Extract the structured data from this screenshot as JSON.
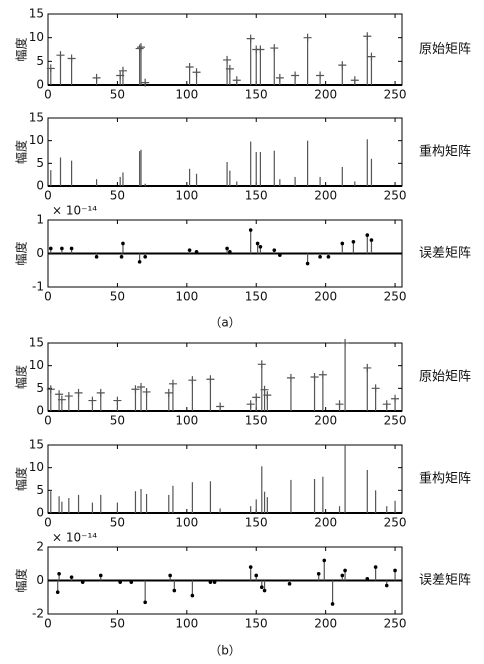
{
  "chart_data": [
    {
      "type": "stem",
      "ylabel": "幅度",
      "label": "原始矩阵",
      "marker": "plus",
      "xlim": [
        0,
        255
      ],
      "xticks": [
        0,
        50,
        100,
        150,
        200,
        250
      ],
      "ylim": [
        0,
        15
      ],
      "yticks": [
        0,
        5,
        10,
        15
      ],
      "x": [
        2,
        9,
        17,
        35,
        52,
        54,
        66,
        67,
        70,
        102,
        107,
        129,
        131,
        136,
        146,
        150,
        153,
        163,
        167,
        178,
        187,
        196,
        212,
        221,
        230,
        233
      ],
      "values": [
        3.5,
        6.3,
        5.6,
        1.5,
        2,
        3,
        7.7,
        8,
        0.5,
        3.8,
        2.7,
        5.3,
        3.4,
        1,
        9.8,
        7.5,
        7.5,
        7.8,
        1.5,
        2,
        10,
        2,
        4.2,
        1,
        10.3,
        6
      ]
    },
    {
      "type": "stem",
      "ylabel": "幅度",
      "label": "重构矩阵",
      "marker": "none",
      "xlim": [
        0,
        255
      ],
      "xticks": [
        0,
        50,
        100,
        150,
        200,
        250
      ],
      "ylim": [
        0,
        15
      ],
      "yticks": [
        0,
        5,
        10,
        15
      ],
      "x": [
        2,
        9,
        17,
        35,
        52,
        54,
        66,
        67,
        70,
        102,
        107,
        129,
        131,
        136,
        146,
        150,
        153,
        163,
        167,
        178,
        187,
        196,
        212,
        221,
        230,
        233
      ],
      "values": [
        3.5,
        6.3,
        5.6,
        1.5,
        2,
        3,
        7.7,
        8,
        0.5,
        3.8,
        2.7,
        5.3,
        3.4,
        1,
        9.8,
        7.5,
        7.5,
        7.8,
        1.5,
        2,
        10,
        2,
        4.2,
        1,
        10.3,
        6
      ]
    },
    {
      "type": "stem",
      "ylabel": "幅度",
      "label": "误差矩阵",
      "marker": "dot",
      "offset_text": "× 10⁻¹⁴",
      "xlim": [
        0,
        255
      ],
      "xticks": [
        0,
        50,
        100,
        150,
        200,
        250
      ],
      "ylim": [
        -1,
        1
      ],
      "yticks": [
        -1,
        0,
        1
      ],
      "x": [
        2,
        10,
        17,
        35,
        53,
        54,
        66,
        70,
        102,
        107,
        129,
        131,
        146,
        151,
        153,
        163,
        167,
        187,
        196,
        202,
        212,
        220,
        230,
        233
      ],
      "values": [
        0.15,
        0.15,
        0.15,
        -0.1,
        -0.1,
        0.3,
        -0.25,
        -0.1,
        0.1,
        0.05,
        0.15,
        0.05,
        0.7,
        0.3,
        0.2,
        0.1,
        -0.05,
        -0.3,
        -0.1,
        -0.1,
        0.3,
        0.35,
        0.55,
        0.4
      ]
    },
    {
      "type": "stem",
      "ylabel": "幅度",
      "label": "原始矩阵",
      "marker": "plus",
      "xlim": [
        0,
        255
      ],
      "xticks": [
        0,
        50,
        100,
        150,
        200,
        250
      ],
      "ylim": [
        0,
        15
      ],
      "yticks": [
        0,
        5,
        10,
        15
      ],
      "x": [
        2,
        8,
        10,
        15,
        22,
        32,
        38,
        50,
        63,
        67,
        71,
        87,
        90,
        104,
        117,
        124,
        146,
        150,
        154,
        156,
        158,
        175,
        192,
        198,
        210,
        214,
        230,
        236,
        244,
        250
      ],
      "values": [
        4.8,
        3.7,
        2.5,
        3.3,
        4,
        2.3,
        4,
        2.3,
        4.8,
        5.3,
        4.2,
        4,
        6,
        6.8,
        7,
        1,
        1.5,
        3,
        10.3,
        4.7,
        3.5,
        7.3,
        7.5,
        8,
        1.5,
        15,
        9.5,
        5,
        1.5,
        2.7
      ]
    },
    {
      "type": "stem",
      "ylabel": "幅度",
      "label": "重构矩阵",
      "marker": "none",
      "xlim": [
        0,
        255
      ],
      "xticks": [
        0,
        50,
        100,
        150,
        200,
        250
      ],
      "ylim": [
        0,
        15
      ],
      "yticks": [
        0,
        5,
        10,
        15
      ],
      "x": [
        2,
        8,
        10,
        15,
        22,
        32,
        38,
        50,
        63,
        67,
        71,
        87,
        90,
        104,
        117,
        124,
        146,
        150,
        154,
        156,
        158,
        175,
        192,
        198,
        210,
        214,
        230,
        236,
        244,
        250
      ],
      "values": [
        4.8,
        3.7,
        2.5,
        3.3,
        4,
        2.3,
        4,
        2.3,
        4.8,
        5.3,
        4.2,
        4,
        6,
        6.8,
        7,
        1,
        1.5,
        3,
        10.3,
        4.7,
        3.5,
        7.3,
        7.5,
        8,
        1.5,
        15,
        9.5,
        5,
        1.5,
        2.7
      ]
    },
    {
      "type": "stem",
      "ylabel": "幅度",
      "label": "误差矩阵",
      "marker": "dot",
      "offset_text": "× 10⁻¹⁴",
      "xlim": [
        0,
        255
      ],
      "xticks": [
        0,
        50,
        100,
        150,
        200,
        250
      ],
      "ylim": [
        -2,
        2
      ],
      "yticks": [
        -2,
        0,
        2
      ],
      "x": [
        7,
        8,
        17,
        25,
        38,
        52,
        60,
        70,
        88,
        91,
        104,
        117,
        120,
        146,
        150,
        154,
        156,
        174,
        195,
        199,
        205,
        212,
        214,
        230,
        236,
        244,
        250
      ],
      "values": [
        -0.7,
        0.4,
        0.2,
        -0.1,
        0.3,
        -0.1,
        -0.1,
        -1.3,
        0.3,
        -0.6,
        -0.9,
        -0.1,
        -0.1,
        0.8,
        0.3,
        -0.4,
        -0.6,
        -0.2,
        0.4,
        1.2,
        -1.4,
        0.3,
        0.6,
        0.1,
        0.8,
        -0.3,
        0.6
      ]
    }
  ],
  "captions": [
    "（a）",
    "（b）"
  ]
}
